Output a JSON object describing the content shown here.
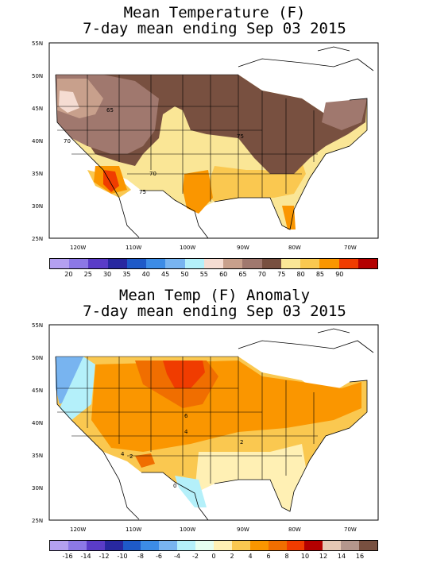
{
  "panel1": {
    "title_line1": "Mean Temperature (F)",
    "title_line2": "7-day mean ending Sep 03 2015",
    "lat_labels": [
      "55N",
      "50N",
      "45N",
      "40N",
      "35N",
      "30N",
      "25N"
    ],
    "lon_labels": [
      "120W",
      "110W",
      "100W",
      "90W",
      "80W",
      "70W"
    ],
    "contour_labels": [
      "65",
      "70",
      "75",
      "70",
      "75"
    ],
    "legend_ticks": [
      "20",
      "25",
      "30",
      "35",
      "40",
      "45",
      "50",
      "55",
      "60",
      "65",
      "70",
      "75",
      "80",
      "85",
      "90"
    ],
    "legend_colors": [
      "#b4a0f0",
      "#8c78e6",
      "#5a3cc8",
      "#2828a0",
      "#1e5ac8",
      "#3c8ce6",
      "#78b4f0",
      "#b4f0fa",
      "#f5dcd2",
      "#c8a08c",
      "#a0786e",
      "#785040",
      "#fae696",
      "#fac850",
      "#fa9600",
      "#f03c00",
      "#b40000"
    ]
  },
  "panel2": {
    "title_line1": "Mean Temp (F) Anomaly",
    "title_line2": "7-day mean ending Sep 03 2015",
    "lat_labels": [
      "55N",
      "50N",
      "45N",
      "40N",
      "35N",
      "30N",
      "25N"
    ],
    "lon_labels": [
      "120W",
      "110W",
      "100W",
      "90W",
      "80W",
      "70W"
    ],
    "contour_labels": [
      "6",
      "4",
      "2",
      "4",
      "2",
      "0"
    ],
    "legend_ticks": [
      "-16",
      "-14",
      "-12",
      "-10",
      "-8",
      "-6",
      "-4",
      "-2",
      "0",
      "2",
      "4",
      "6",
      "8",
      "10",
      "12",
      "14",
      "16"
    ],
    "legend_colors": [
      "#b4a0f0",
      "#8c78e6",
      "#5a3cc8",
      "#2828a0",
      "#1e5ac8",
      "#3c8ce6",
      "#78b4f0",
      "#b4f0fa",
      "#e6fff0",
      "#fff0b4",
      "#fac850",
      "#fa9600",
      "#f06e00",
      "#f03c00",
      "#b40000",
      "#e6c8b4",
      "#b4968c",
      "#785040"
    ]
  }
}
